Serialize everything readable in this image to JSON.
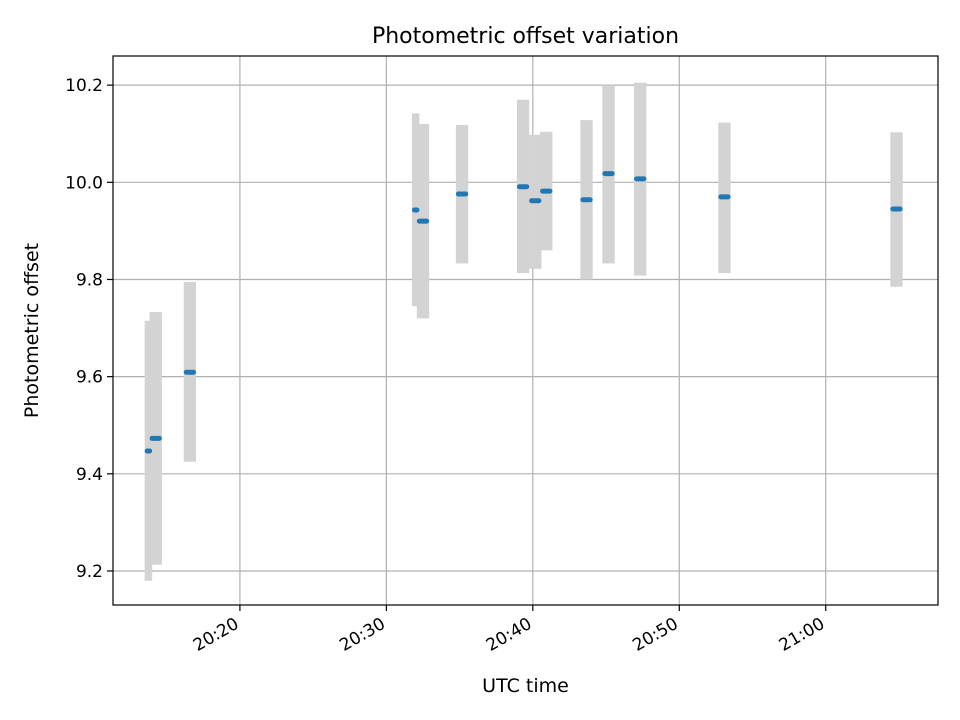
{
  "chart_data": {
    "type": "scatter",
    "title": "Photometric offset variation",
    "xlabel": "UTC time",
    "ylabel": "Photometric offset",
    "x_ticks": [
      "20:20",
      "20:30",
      "20:40",
      "20:50",
      "21:00"
    ],
    "y_ticks": [
      "9.2",
      "9.4",
      "9.6",
      "9.8",
      "10.0",
      "10.2"
    ],
    "xlim": [
      "20:11:20",
      "21:07:40"
    ],
    "ylim": [
      9.13,
      10.26
    ],
    "grid": true,
    "colors": {
      "point": "#1f77b4",
      "errorbar": "#d3d3d3",
      "grid": "#b0b0b0"
    },
    "points": [
      {
        "x": [
          "20:13:40",
          "20:13:45"
        ],
        "y": 9.447,
        "low": 9.18,
        "high": 9.715
      },
      {
        "x": [
          "20:14:00",
          "20:14:30"
        ],
        "y": 9.473,
        "low": 9.213,
        "high": 9.733
      },
      {
        "x": [
          "20:16:20",
          "20:16:50"
        ],
        "y": 9.609,
        "low": 9.425,
        "high": 9.795
      },
      {
        "x": [
          "20:31:55",
          "20:32:00"
        ],
        "y": 9.943,
        "low": 9.745,
        "high": 10.142
      },
      {
        "x": [
          "20:32:15",
          "20:32:45"
        ],
        "y": 9.92,
        "low": 9.72,
        "high": 10.12
      },
      {
        "x": [
          "20:34:55",
          "20:35:25"
        ],
        "y": 9.976,
        "low": 9.833,
        "high": 10.118
      },
      {
        "x": [
          "20:39:05",
          "20:39:35"
        ],
        "y": 9.991,
        "low": 9.813,
        "high": 10.17
      },
      {
        "x": [
          "20:39:55",
          "20:40:25"
        ],
        "y": 9.962,
        "low": 9.822,
        "high": 10.098
      },
      {
        "x": [
          "20:40:40",
          "20:41:10"
        ],
        "y": 9.982,
        "low": 9.86,
        "high": 10.104
      },
      {
        "x": [
          "20:43:25",
          "20:43:55"
        ],
        "y": 9.964,
        "low": 9.8,
        "high": 10.128
      },
      {
        "x": [
          "20:44:55",
          "20:45:25"
        ],
        "y": 10.018,
        "low": 9.833,
        "high": 10.2
      },
      {
        "x": [
          "20:47:05",
          "20:47:35"
        ],
        "y": 10.007,
        "low": 9.808,
        "high": 10.205
      },
      {
        "x": [
          "20:52:50",
          "20:53:20"
        ],
        "y": 9.97,
        "low": 9.813,
        "high": 10.123
      },
      {
        "x": [
          "21:04:35",
          "21:05:05"
        ],
        "y": 9.945,
        "low": 9.785,
        "high": 10.103
      }
    ]
  }
}
